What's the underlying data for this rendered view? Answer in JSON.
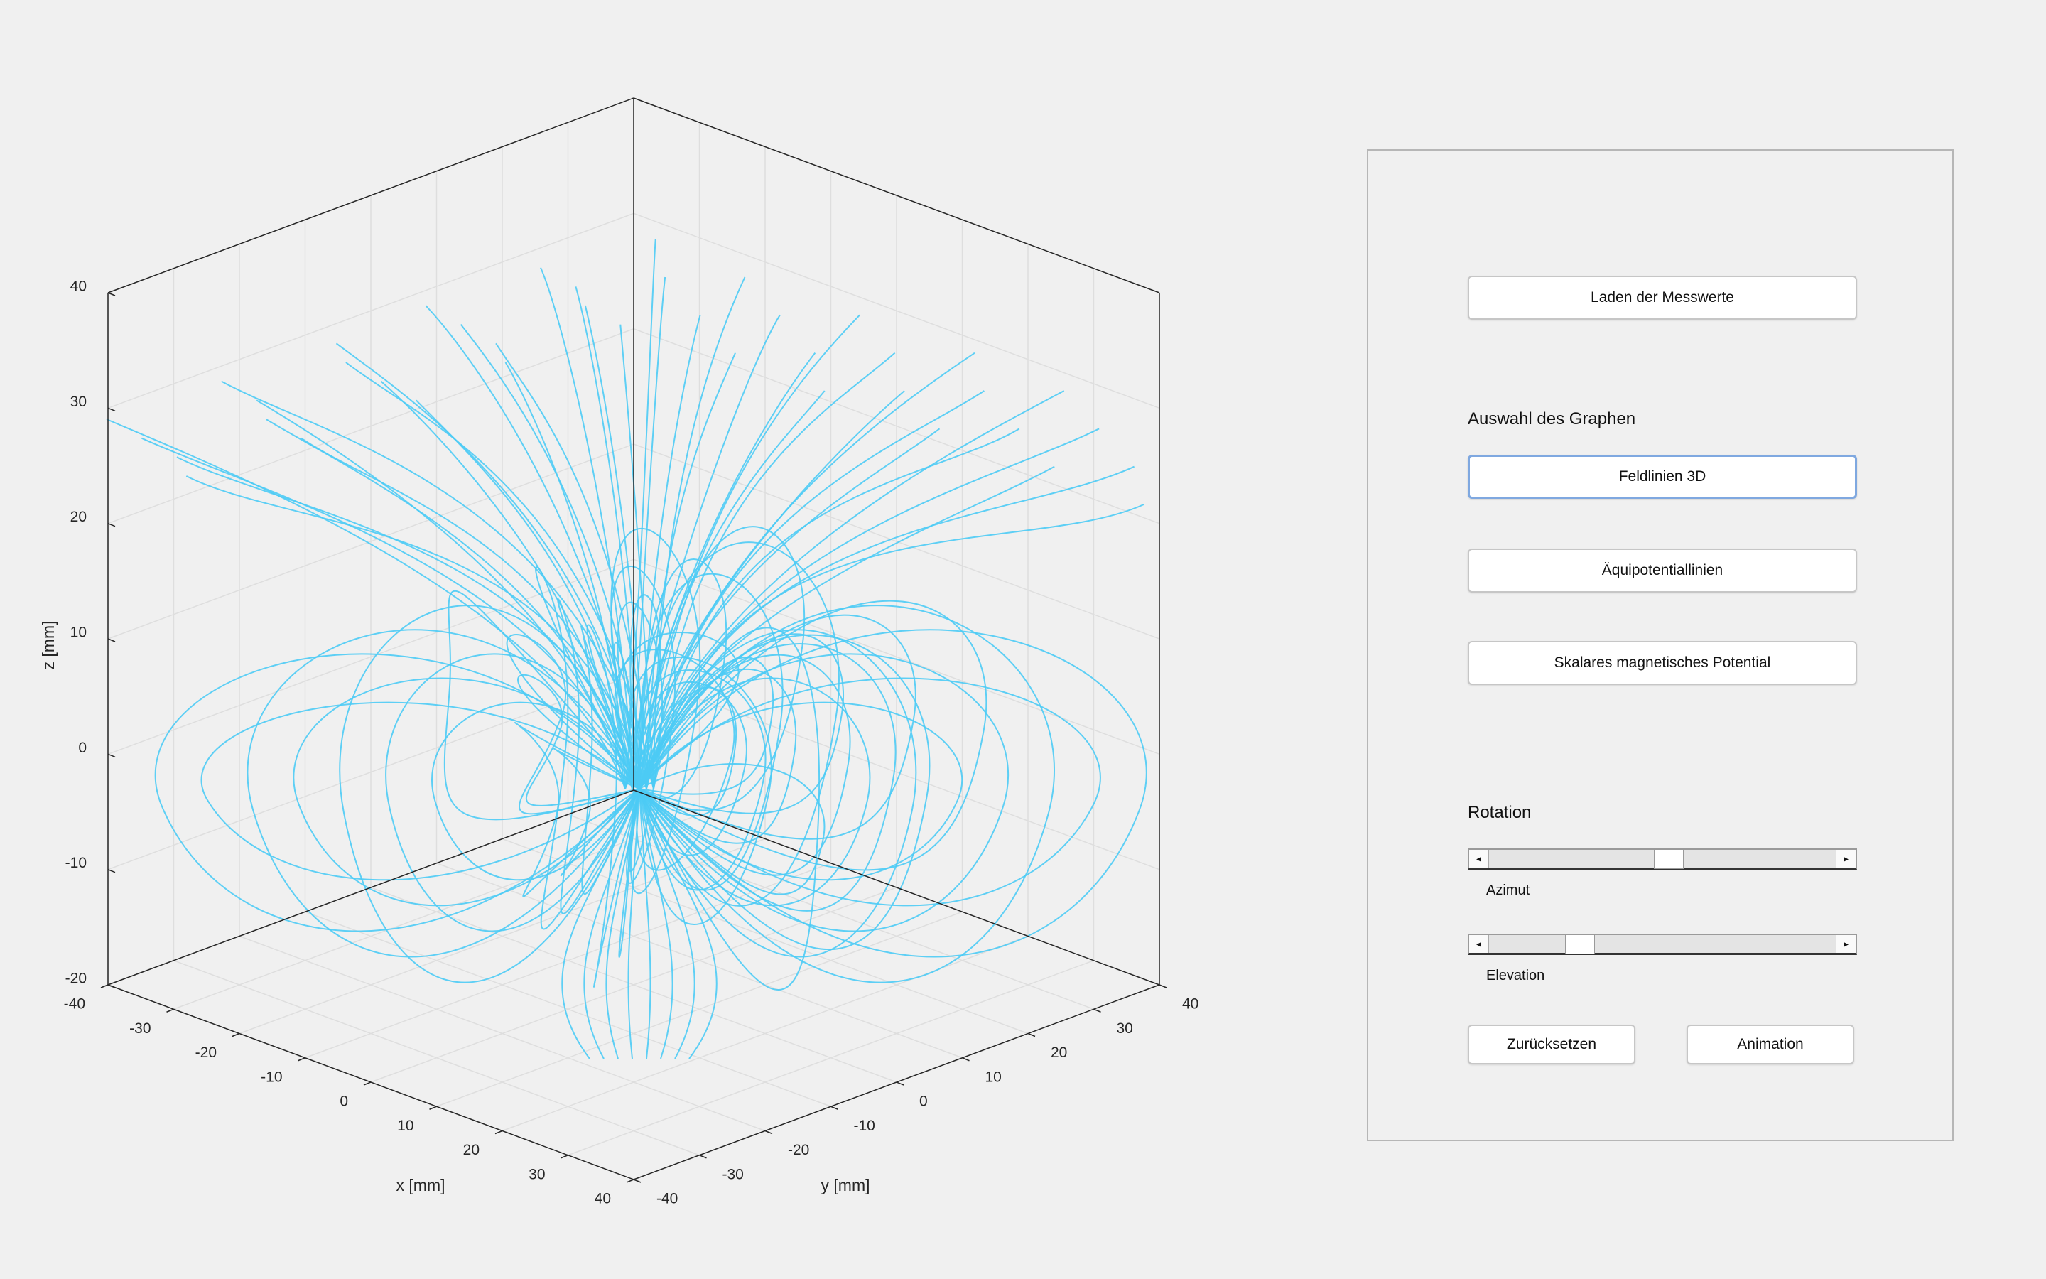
{
  "colors": {
    "background": "#f0f0f0",
    "field_line": "#4dcbf5",
    "axis": "#262626",
    "grid": "#dedede",
    "active_border": "#7fa8e0"
  },
  "plot": {
    "x_label": "x [mm]",
    "y_label": "y [mm]",
    "z_label": "z [mm]",
    "x_ticks": [
      "-40",
      "-30",
      "-20",
      "-10",
      "0",
      "10",
      "20",
      "30",
      "40"
    ],
    "y_ticks": [
      "-40",
      "-30",
      "-20",
      "-10",
      "0",
      "10",
      "20",
      "30",
      "40"
    ],
    "z_ticks": [
      "-20",
      "-10",
      "0",
      "10",
      "20",
      "30",
      "40"
    ],
    "x_range": [
      -40,
      40
    ],
    "y_range": [
      -40,
      40
    ],
    "z_range": [
      -20,
      40
    ],
    "grid": true,
    "content": "3D magnetic field lines"
  },
  "panel": {
    "load_button": "Laden der Messwerte",
    "graph_heading": "Auswahl des Graphen",
    "graph_buttons": {
      "field_lines": "Feldlinien 3D",
      "equipotential": "Äquipotentiallinien",
      "scalar_potential": "Skalares magnetisches Potential"
    },
    "selected_graph": "Feldlinien 3D",
    "rotation_heading": "Rotation",
    "azimuth": {
      "label": "Azimut",
      "value_fraction": 0.52
    },
    "elevation": {
      "label": "Elevation",
      "value_fraction": 0.24
    },
    "reset_button": "Zurücksetzen",
    "animation_button": "Animation",
    "arrow_left": "◂",
    "arrow_right": "▸"
  }
}
